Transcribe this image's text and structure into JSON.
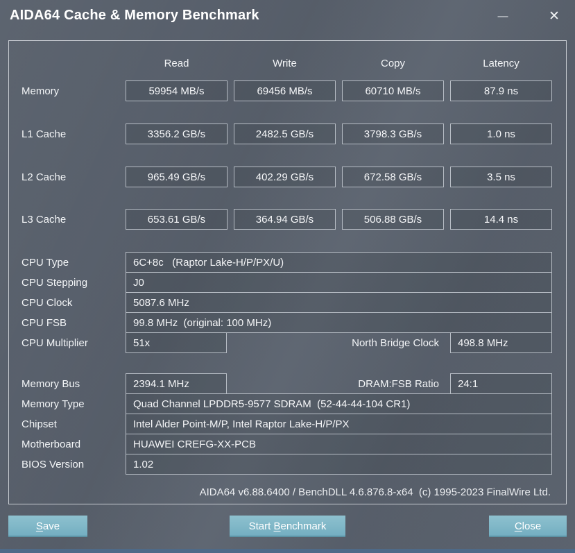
{
  "window": {
    "title": "AIDA64 Cache & Memory Benchmark"
  },
  "titlebar": {
    "minimize_icon": "—",
    "close_icon": "✕"
  },
  "benchmark_table": {
    "columns": [
      "Read",
      "Write",
      "Copy",
      "Latency"
    ],
    "rows": [
      {
        "label": "Memory",
        "values": [
          "59954 MB/s",
          "69456 MB/s",
          "60710 MB/s",
          "87.9 ns"
        ]
      },
      {
        "label": "L1 Cache",
        "values": [
          "3356.2 GB/s",
          "2482.5 GB/s",
          "3798.3 GB/s",
          "1.0 ns"
        ]
      },
      {
        "label": "L2 Cache",
        "values": [
          "965.49 GB/s",
          "402.29 GB/s",
          "672.58 GB/s",
          "3.5 ns"
        ]
      },
      {
        "label": "L3 Cache",
        "values": [
          "653.61 GB/s",
          "364.94 GB/s",
          "506.88 GB/s",
          "14.4 ns"
        ]
      }
    ]
  },
  "cpu_info": {
    "rows": [
      {
        "label": "CPU Type",
        "value": "6C+8c   (Raptor Lake-H/P/PX/U)"
      },
      {
        "label": "CPU Stepping",
        "value": "J0"
      },
      {
        "label": "CPU Clock",
        "value": "5087.6 MHz"
      },
      {
        "label": "CPU FSB",
        "value": "99.8 MHz  (original: 100 MHz)"
      },
      {
        "label": "CPU Multiplier",
        "value": "51x",
        "extra_label": "North Bridge Clock",
        "extra_value": "498.8 MHz"
      }
    ]
  },
  "memory_info": {
    "rows": [
      {
        "label": "Memory Bus",
        "value": "2394.1 MHz",
        "extra_label": "DRAM:FSB Ratio",
        "extra_value": "24:1"
      },
      {
        "label": "Memory Type",
        "value": "Quad Channel LPDDR5-9577 SDRAM  (52-44-44-104 CR1)"
      },
      {
        "label": "Chipset",
        "value": "Intel Alder Point-M/P, Intel Raptor Lake-H/P/PX"
      },
      {
        "label": "Motherboard",
        "value": "HUAWEI CREFG-XX-PCB"
      },
      {
        "label": "BIOS Version",
        "value": "1.02"
      }
    ]
  },
  "footer": {
    "version_line": "AIDA64 v6.88.6400 / BenchDLL 4.6.876.8-x64  (c) 1995-2023 FinalWire Ltd."
  },
  "buttons": {
    "save": {
      "label": "Save",
      "access_key": "S"
    },
    "start": {
      "label": "Start Benchmark",
      "access_key": "B"
    },
    "close": {
      "label": "Close",
      "access_key": "C"
    }
  },
  "colors": {
    "window_bg": "#59616d",
    "button_accent": "#72adc0",
    "button_accent_light": "#8ec1cf",
    "bottom_strip": "#4e6a88"
  }
}
